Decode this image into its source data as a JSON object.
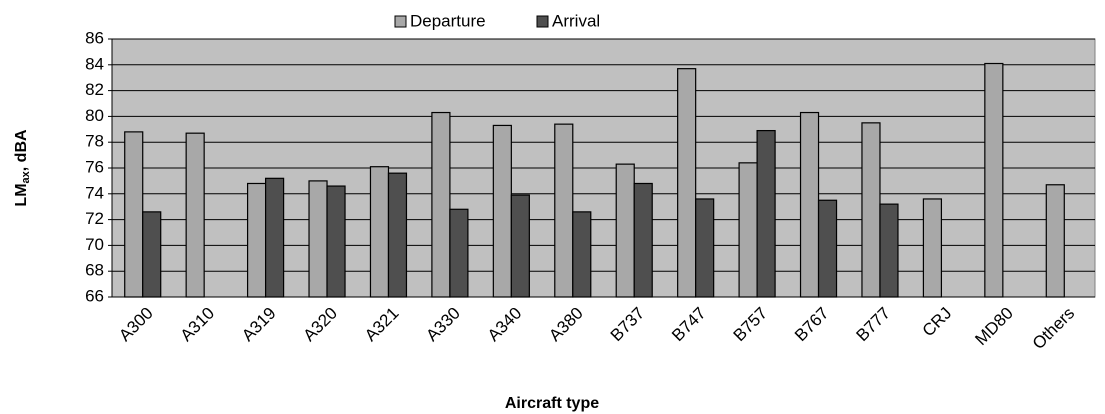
{
  "chart_data": {
    "type": "bar",
    "x_label": "Aircraft type",
    "y_label": {
      "main": "LM",
      "sub": "ax",
      "unit": ", dBA"
    },
    "categories": [
      "A300",
      "A310",
      "A319",
      "A320",
      "A321",
      "A330",
      "A340",
      "A380",
      "B737",
      "B747",
      "B757",
      "B767",
      "B777",
      "CRJ",
      "MD80",
      "Others"
    ],
    "series": [
      {
        "name": "Departure",
        "color": "#a8a8a8",
        "values": [
          78.8,
          78.7,
          74.8,
          75.0,
          76.1,
          80.3,
          79.3,
          79.4,
          76.3,
          83.7,
          76.4,
          80.3,
          79.5,
          73.6,
          84.1,
          74.7
        ]
      },
      {
        "name": "Arrival",
        "color": "#4f4f4f",
        "values": [
          72.6,
          null,
          75.2,
          74.6,
          75.6,
          72.8,
          73.9,
          72.6,
          74.8,
          73.6,
          78.9,
          73.5,
          73.2,
          null,
          null,
          null
        ]
      }
    ],
    "ylim": [
      66,
      86
    ],
    "yticks": [
      66,
      68,
      70,
      72,
      74,
      76,
      78,
      80,
      82,
      84,
      86
    ],
    "grid": true,
    "legend": "top",
    "plot_background": "#c0c0c0"
  }
}
